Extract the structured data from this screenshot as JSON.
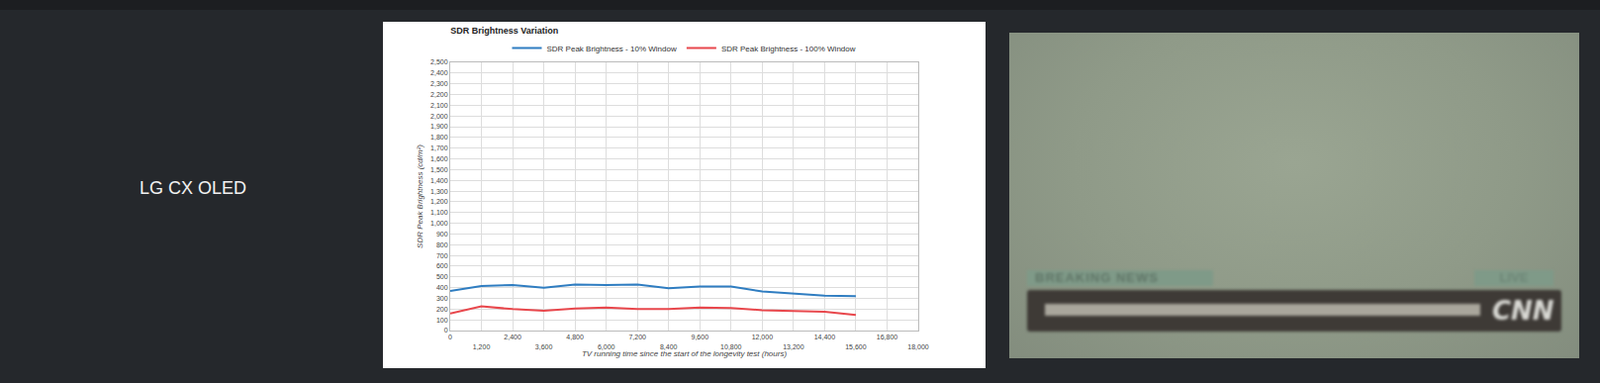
{
  "row_label": "LG CX OLED",
  "chart_data": {
    "type": "line",
    "title": "SDR Brightness Variation",
    "x_label": "TV running time since the start of the longevity test (hours)",
    "y_label": "SDR Peak Brightness (cd/m²)",
    "x": [
      0,
      1200,
      2400,
      3600,
      4800,
      6000,
      7200,
      8400,
      9600,
      10800,
      12000,
      13200,
      14400,
      15600
    ],
    "series": [
      {
        "name": "SDR Peak Brightness - 10% Window",
        "color": "#2f7dc1",
        "values": [
          370,
          415,
          425,
          400,
          430,
          425,
          430,
          395,
          410,
          410,
          365,
          345,
          325,
          320
        ]
      },
      {
        "name": "SDR Peak Brightness - 100% Window",
        "color": "#e8474c",
        "values": [
          160,
          225,
          200,
          185,
          205,
          215,
          200,
          200,
          215,
          210,
          190,
          180,
          175,
          145
        ]
      }
    ],
    "xlim": [
      0,
      18000
    ],
    "xticks": [
      0,
      {
        "value": 1200,
        "label": "1,200"
      },
      {
        "value": 2400,
        "label": "2,400"
      },
      {
        "value": 3600,
        "label": "3,600"
      },
      {
        "value": 4800,
        "label": "4,800"
      },
      {
        "value": 6000,
        "label": "6,000"
      },
      {
        "value": 7200,
        "label": "7,200"
      },
      {
        "value": 8400,
        "label": "8,400"
      },
      {
        "value": 9600,
        "label": "9,600"
      },
      {
        "value": 10800,
        "label": "10,800"
      },
      {
        "value": 12000,
        "label": "12,000"
      },
      {
        "value": 13200,
        "label": "13,200"
      },
      {
        "value": 14400,
        "label": "14,400"
      },
      {
        "value": 15600,
        "label": "15,600"
      },
      {
        "value": 16800,
        "label": "16,800"
      },
      {
        "value": 18000,
        "label": "18,000"
      }
    ],
    "ylim": [
      0,
      2500
    ],
    "yticks": [
      0,
      100,
      200,
      300,
      400,
      500,
      600,
      700,
      800,
      900,
      {
        "value": 1000,
        "label": "1,000"
      },
      {
        "value": 1100,
        "label": "1,100"
      },
      {
        "value": 1200,
        "label": "1,200"
      },
      {
        "value": 1300,
        "label": "1,300"
      },
      {
        "value": 1400,
        "label": "1,400"
      },
      {
        "value": 1500,
        "label": "1,500"
      },
      {
        "value": 1600,
        "label": "1,600"
      },
      {
        "value": 1700,
        "label": "1,700"
      },
      {
        "value": 1800,
        "label": "1,800"
      },
      {
        "value": 1900,
        "label": "1,900"
      },
      {
        "value": 2000,
        "label": "2,000"
      },
      {
        "value": 2100,
        "label": "2,100"
      },
      {
        "value": 2200,
        "label": "2,200"
      },
      {
        "value": 2300,
        "label": "2,300"
      },
      {
        "value": 2400,
        "label": "2,400"
      },
      {
        "value": 2500,
        "label": "2,500"
      }
    ],
    "grid": true,
    "legend": "top"
  },
  "photo": {
    "banner": "BREAKING NEWS",
    "badge": "LIVE",
    "logo": "CNN"
  }
}
